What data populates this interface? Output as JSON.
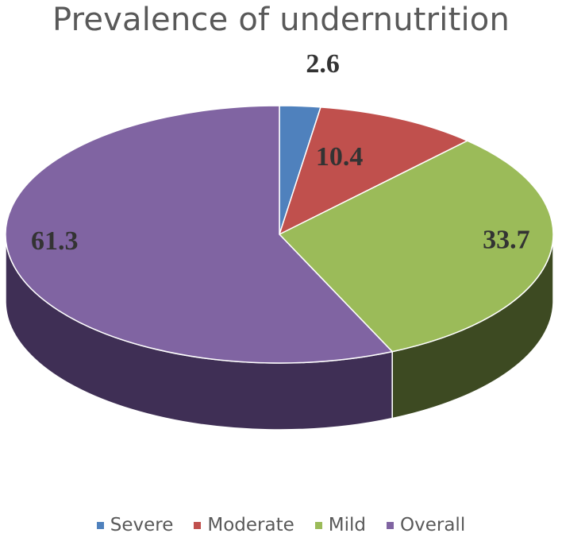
{
  "chart_data": {
    "type": "pie",
    "title": "Prevalence of undernutrition",
    "legend_position": "bottom",
    "style": "3d",
    "slices": [
      {
        "name": "Severe",
        "value": 2.6,
        "label": "2.6",
        "color": "#4f81bd",
        "side_color": "#2c4a6e"
      },
      {
        "name": "Moderate",
        "value": 10.4,
        "label": "10.4",
        "color": "#c0504d",
        "side_color": "#6e2d2b"
      },
      {
        "name": "Mild",
        "value": 33.7,
        "label": "33.7",
        "color": "#9bbb59",
        "side_color": "#3d4a22"
      },
      {
        "name": "Overall",
        "value": 61.3,
        "label": "61.3",
        "color": "#8064a2",
        "side_color": "#3f2f55"
      }
    ]
  }
}
